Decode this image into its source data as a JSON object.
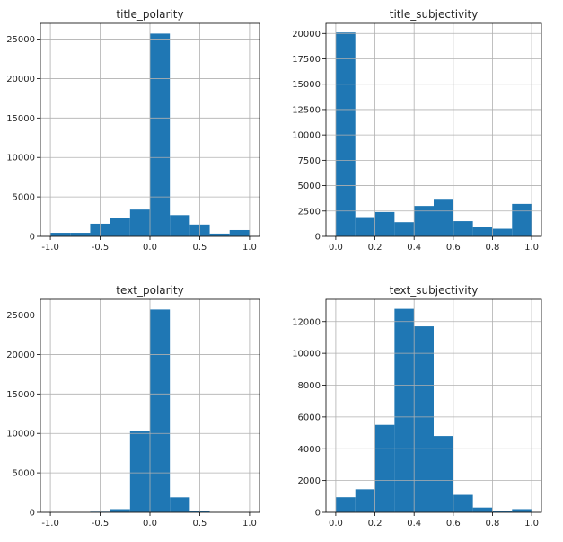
{
  "chart_data": [
    {
      "type": "bar",
      "title": "title_polarity",
      "bin_edges": [
        -1.0,
        -0.8,
        -0.6,
        -0.4,
        -0.2,
        0.0,
        0.2,
        0.4,
        0.6,
        0.8,
        1.0
      ],
      "values": [
        450,
        450,
        1600,
        2300,
        3400,
        25700,
        2700,
        1500,
        350,
        800
      ],
      "xlim": [
        -1.1,
        1.1
      ],
      "ylim": [
        0,
        27000
      ],
      "xticks": [
        "-1.0",
        "-0.5",
        "0.0",
        "0.5",
        "1.0"
      ],
      "xtick_values": [
        -1.0,
        -0.5,
        0.0,
        0.5,
        1.0
      ],
      "yticks": [
        "0",
        "5000",
        "10000",
        "15000",
        "20000",
        "25000"
      ],
      "ytick_values": [
        0,
        5000,
        10000,
        15000,
        20000,
        25000
      ],
      "grid": true,
      "color": "#1f77b4"
    },
    {
      "type": "bar",
      "title": "title_subjectivity",
      "bin_edges": [
        0.0,
        0.1,
        0.2,
        0.3,
        0.4,
        0.5,
        0.6,
        0.7,
        0.8,
        0.9,
        1.0
      ],
      "values": [
        20100,
        1900,
        2400,
        1400,
        3000,
        3700,
        1500,
        950,
        750,
        3200
      ],
      "xlim": [
        -0.05,
        1.05
      ],
      "ylim": [
        0,
        21000
      ],
      "xticks": [
        "0.0",
        "0.2",
        "0.4",
        "0.6",
        "0.8",
        "1.0"
      ],
      "xtick_values": [
        0.0,
        0.2,
        0.4,
        0.6,
        0.8,
        1.0
      ],
      "yticks": [
        "0",
        "2500",
        "5000",
        "7500",
        "10000",
        "12500",
        "15000",
        "17500",
        "20000"
      ],
      "ytick_values": [
        0,
        2500,
        5000,
        7500,
        10000,
        12500,
        15000,
        17500,
        20000
      ],
      "grid": true,
      "color": "#1f77b4"
    },
    {
      "type": "bar",
      "title": "text_polarity",
      "bin_edges": [
        -1.0,
        -0.8,
        -0.6,
        -0.4,
        -0.2,
        0.0,
        0.2,
        0.4,
        0.6,
        0.8,
        1.0
      ],
      "values": [
        0,
        0,
        80,
        400,
        10300,
        25700,
        1900,
        200,
        20,
        0
      ],
      "xlim": [
        -1.1,
        1.1
      ],
      "ylim": [
        0,
        27000
      ],
      "xticks": [
        "-1.0",
        "-0.5",
        "0.0",
        "0.5",
        "1.0"
      ],
      "xtick_values": [
        -1.0,
        -0.5,
        0.0,
        0.5,
        1.0
      ],
      "yticks": [
        "0",
        "5000",
        "10000",
        "15000",
        "20000",
        "25000"
      ],
      "ytick_values": [
        0,
        5000,
        10000,
        15000,
        20000,
        25000
      ],
      "grid": true,
      "color": "#1f77b4"
    },
    {
      "type": "bar",
      "title": "text_subjectivity",
      "bin_edges": [
        0.0,
        0.1,
        0.2,
        0.3,
        0.4,
        0.5,
        0.6,
        0.7,
        0.8,
        0.9,
        1.0
      ],
      "values": [
        950,
        1450,
        5500,
        12800,
        11700,
        4800,
        1100,
        300,
        100,
        200
      ],
      "xlim": [
        -0.05,
        1.05
      ],
      "ylim": [
        0,
        13400
      ],
      "xticks": [
        "0.0",
        "0.2",
        "0.4",
        "0.6",
        "0.8",
        "1.0"
      ],
      "xtick_values": [
        0.0,
        0.2,
        0.4,
        0.6,
        0.8,
        1.0
      ],
      "yticks": [
        "0",
        "2000",
        "4000",
        "6000",
        "8000",
        "10000",
        "12000"
      ],
      "ytick_values": [
        0,
        2000,
        4000,
        6000,
        8000,
        10000,
        12000
      ],
      "grid": true,
      "color": "#1f77b4"
    }
  ]
}
